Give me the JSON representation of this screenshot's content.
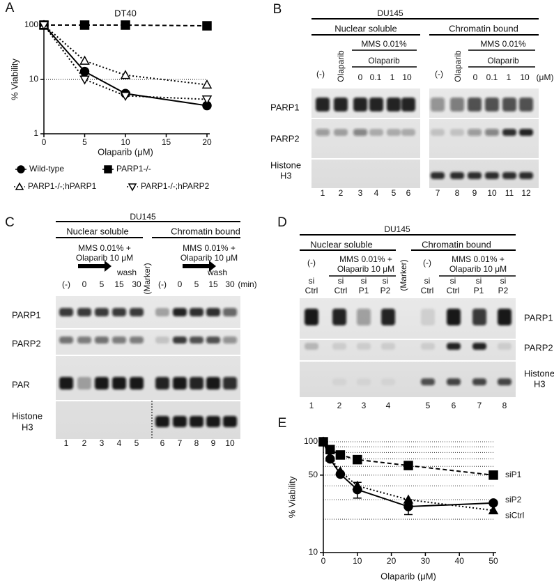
{
  "chart_data": [
    {
      "type": "line",
      "panel": "A",
      "title": "DT40",
      "x_label": "Olaparib (μM)",
      "y_label": "% Viability",
      "log_y": true,
      "xlim": [
        0,
        20
      ],
      "ylim": [
        1,
        100
      ],
      "xticks": [
        0,
        5,
        10,
        15,
        20
      ],
      "yticks": [
        1,
        10,
        100
      ],
      "reference_line": 10,
      "x": [
        0,
        5,
        10,
        20
      ],
      "series": [
        {
          "name": "Wild-type",
          "color": "#000000",
          "line_style": "solid",
          "marker": "circle",
          "marker_fill": "#000000",
          "values": [
            100,
            14,
            5.5,
            3.3
          ]
        },
        {
          "name": "PARP1-/-",
          "color": "#000000",
          "line_style": "dashed",
          "marker": "square",
          "marker_fill": "#000000",
          "values": [
            100,
            100,
            100,
            97
          ]
        },
        {
          "name": "PARP1-/-;hPARP1",
          "color": "#000000",
          "line_style": "dotted",
          "marker": "triangle-up",
          "marker_fill": "#ffffff",
          "values": [
            100,
            22,
            12,
            8
          ]
        },
        {
          "name": "PARP1-/-;hPARP2",
          "color": "#000000",
          "line_style": "dotted",
          "marker": "triangle-down",
          "marker_fill": "#ffffff",
          "values": [
            100,
            10,
            5,
            4.3
          ]
        }
      ]
    },
    {
      "type": "line",
      "panel": "E",
      "x_label": "Olaparib (μM)",
      "y_label": "% Viability",
      "log_y": true,
      "xlim": [
        0,
        50
      ],
      "ylim": [
        10,
        100
      ],
      "xticks": [
        0,
        10,
        20,
        30,
        40,
        50
      ],
      "yticks": [
        10,
        50,
        100
      ],
      "minor_grid": [
        20,
        30,
        40,
        50,
        60,
        70,
        80,
        90,
        100
      ],
      "x": [
        0,
        2,
        5,
        10,
        25,
        50
      ],
      "series": [
        {
          "name": "siP1",
          "color": "#000000",
          "line_style": "dashed",
          "marker": "square",
          "marker_fill": "#000000",
          "values": [
            100,
            85,
            76,
            69,
            61,
            50
          ]
        },
        {
          "name": "siP2",
          "color": "#000000",
          "line_style": "solid",
          "marker": "circle",
          "marker_fill": "#000000",
          "values": [
            100,
            70,
            51,
            37,
            26,
            28
          ],
          "errors": [
            null,
            null,
            null,
            6,
            4,
            null
          ]
        },
        {
          "name": "siCtrl",
          "color": "#000000",
          "line_style": "dotted",
          "marker": "triangle-up",
          "marker_fill": "#000000",
          "values": [
            100,
            72,
            54,
            40,
            30,
            24
          ]
        }
      ]
    }
  ],
  "blots": [
    {
      "panel": "B",
      "cell_line": "DU145",
      "fractions": [
        "Nuclear soluble",
        "Chromatin bound"
      ],
      "treatments": [
        "(-)",
        "Olaparib",
        "MMS 0.01%",
        "Olaparib",
        "(-)",
        "Olaparib",
        "MMS 0.01%",
        "Olaparib"
      ],
      "columns": [
        "0",
        "0.1",
        "1",
        "10",
        "0",
        "0.1",
        "1",
        "10",
        "(μM)"
      ],
      "rows": [
        [
          "PARP1"
        ],
        [
          "PARP2"
        ],
        [
          "Histone",
          "H3"
        ]
      ],
      "lanes": [
        1,
        2,
        3,
        4,
        5,
        6,
        7,
        8,
        9,
        10,
        11,
        12
      ]
    },
    {
      "panel": "C",
      "cell_line": "DU145",
      "fractions": [
        "Nuclear soluble",
        "Chromatin bound"
      ],
      "treatments": [
        "MMS 0.01% +",
        "Olaparib 10 μM",
        "wash",
        "MMS 0.01% +",
        "Olaparib 10 μM",
        "wash"
      ],
      "marker": "(Marker)",
      "columns": [
        "(-)",
        "0",
        "5",
        "15",
        "30",
        "(-)",
        "0",
        "5",
        "15",
        "30",
        "(min)"
      ],
      "rows": [
        [
          "PARP1"
        ],
        [
          "PARP2"
        ],
        [
          "PAR"
        ],
        [
          "Histone",
          "H3"
        ]
      ],
      "lanes": [
        1,
        2,
        3,
        4,
        5,
        6,
        7,
        8,
        9,
        10
      ]
    },
    {
      "panel": "D",
      "cell_line": "DU145",
      "fractions": [
        "Nuclear soluble",
        "Chromatin bound"
      ],
      "treatments": [
        "(-)",
        "MMS 0.01% +",
        "Olaparib 10 μM",
        "(-)",
        "MMS 0.01% +",
        "Olaparib 10 μM"
      ],
      "marker": "(Marker)",
      "columns": [
        [
          "si",
          "Ctrl"
        ],
        [
          "si",
          "Ctrl"
        ],
        [
          "si",
          "P1"
        ],
        [
          "si",
          "P2"
        ],
        [
          "si",
          "Ctrl"
        ],
        [
          "si",
          "Ctrl"
        ],
        [
          "si",
          "P1"
        ],
        [
          "si",
          "P2"
        ]
      ],
      "rows": [
        [
          "PARP1"
        ],
        [
          "PARP2"
        ],
        [
          "Histone",
          "H3"
        ]
      ],
      "lanes": [
        1,
        2,
        3,
        4,
        5,
        6,
        7,
        8
      ]
    }
  ]
}
